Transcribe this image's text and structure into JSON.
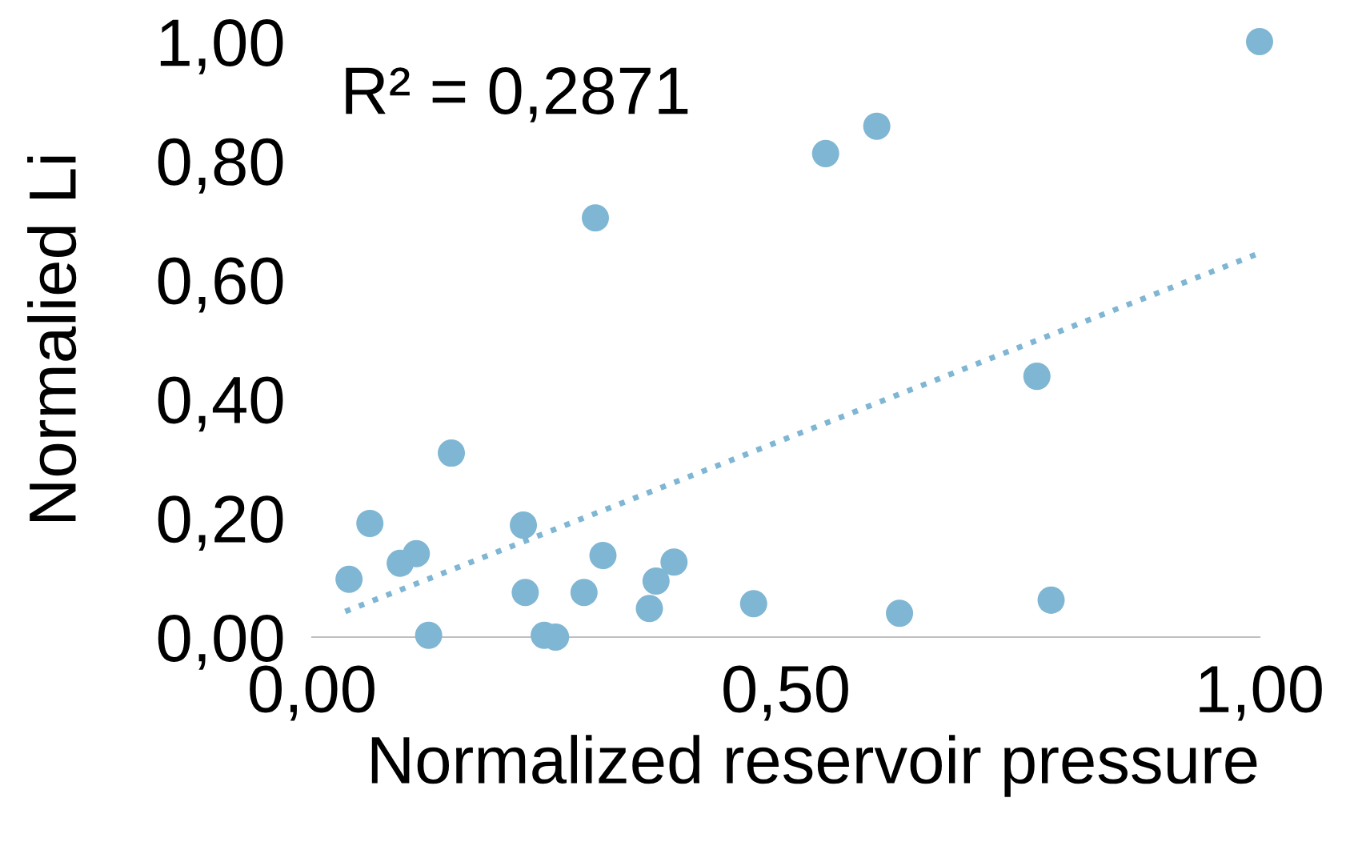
{
  "chart_data": {
    "type": "scatter",
    "xlabel": "Normalized reservoir pressure",
    "ylabel": "Normalied Li",
    "annotations": [
      "R² = 0,2871"
    ],
    "series": [
      {
        "color": "#7fb6d3",
        "marker": "circle",
        "x": [
          0.039,
          0.061,
          0.093,
          0.11,
          0.123,
          0.147,
          0.223,
          0.225,
          0.245,
          0.257,
          0.287,
          0.299,
          0.307,
          0.356,
          0.363,
          0.382,
          0.466,
          0.542,
          0.596,
          0.62,
          0.765,
          0.78,
          1.0
        ],
        "values": [
          0.097,
          0.191,
          0.124,
          0.14,
          0.003,
          0.309,
          0.188,
          0.075,
          0.003,
          0.0,
          0.075,
          0.704,
          0.137,
          0.048,
          0.094,
          0.126,
          0.056,
          0.812,
          0.858,
          0.04,
          0.438,
          0.062,
          1.0
        ]
      },
      {
        "type": "line",
        "color": "#7fb6d3",
        "line_style": "dotted",
        "marker": "none",
        "x": [
          0.035,
          1.0
        ],
        "values": [
          0.043,
          0.645
        ]
      }
    ],
    "xlim": [
      0,
      1
    ],
    "ylim": [
      0,
      1
    ],
    "xticks": [
      {
        "value": 0,
        "label": "0,00"
      },
      {
        "value": 0.5,
        "label": "0,50"
      },
      {
        "value": 1,
        "label": "1,00"
      }
    ],
    "yticks": [
      {
        "value": 0,
        "label": "0,00"
      },
      {
        "value": 0.2,
        "label": "0,20"
      },
      {
        "value": 0.4,
        "label": "0,40"
      },
      {
        "value": 0.6,
        "label": "0,60"
      },
      {
        "value": 0.8,
        "label": "0,80"
      },
      {
        "value": 1,
        "label": "1,00"
      }
    ],
    "grid": false,
    "legend": false
  }
}
